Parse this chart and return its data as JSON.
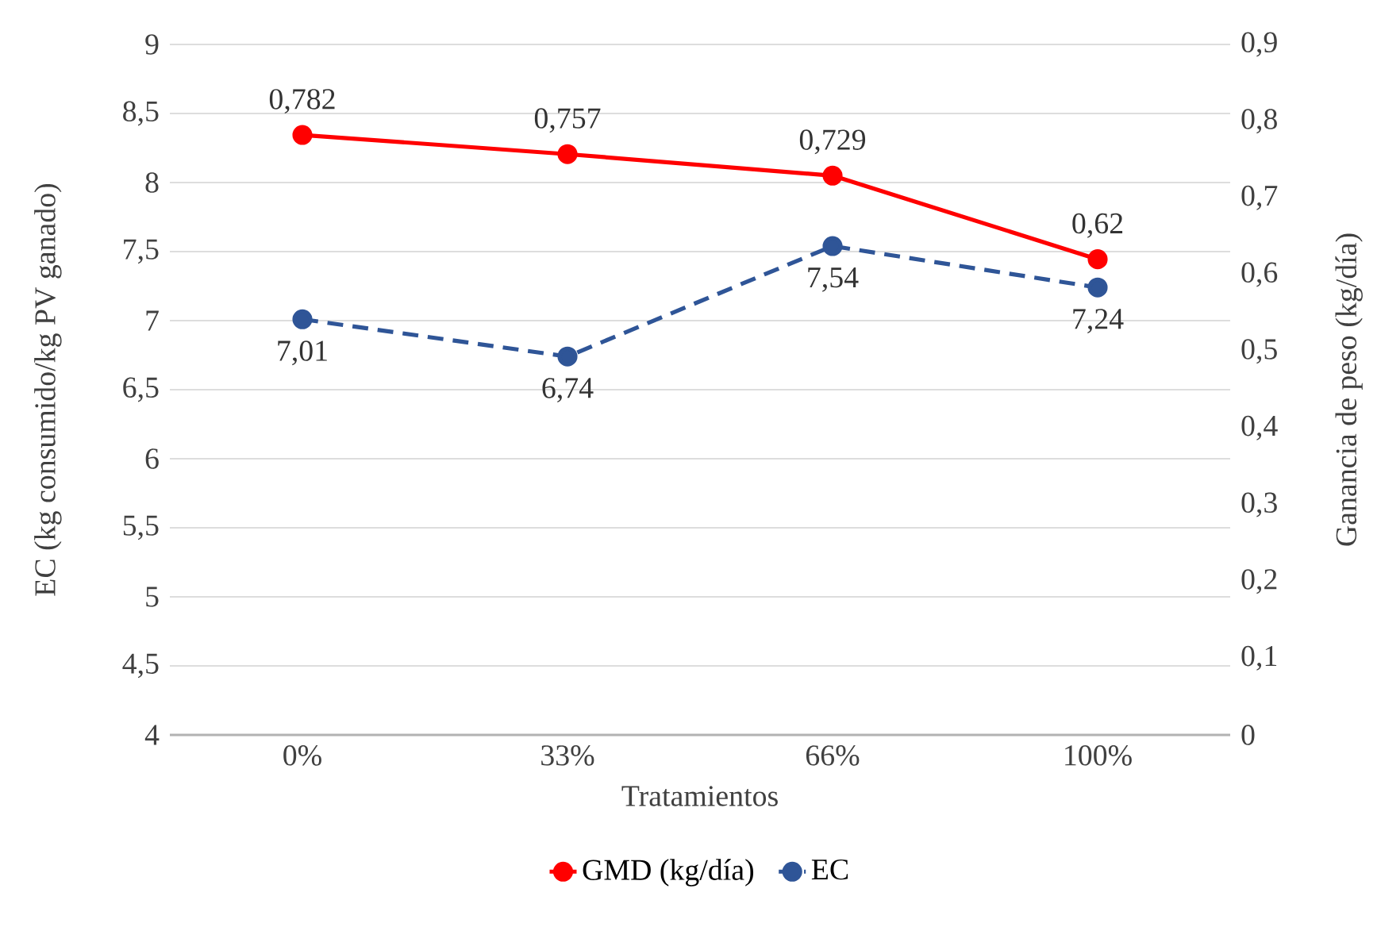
{
  "chart_data": {
    "type": "line",
    "xlabel": "Tratamientos",
    "ylabel": "EC (kg consumido/kg PV ganado)",
    "y2label": "Ganancia de peso (kg/día)",
    "categories": [
      "0%",
      "33%",
      "66%",
      "100%"
    ],
    "series": [
      {
        "name": "GMD (kg/día)",
        "color": "#ff0000",
        "axis": "y2",
        "values": [
          0.782,
          0.757,
          0.729,
          0.62
        ],
        "value_labels": [
          "0,782",
          "0,757",
          "0,729",
          "0,62"
        ],
        "line_style": "solid",
        "marker": "circle"
      },
      {
        "name": "EC",
        "color": "#2f5597",
        "values": [
          7.01,
          6.74,
          7.54,
          7.24
        ],
        "value_labels": [
          "7,01",
          "6,74",
          "7,54",
          "7,24"
        ],
        "line_style": "dashed",
        "marker": "circle"
      }
    ],
    "ylim": [
      4,
      9
    ],
    "yticks": [
      4,
      {
        "value": 4.5,
        "label": "4,5"
      },
      5,
      {
        "value": 5.5,
        "label": "5,5"
      },
      6,
      {
        "value": 6.5,
        "label": "6,5"
      },
      7,
      {
        "value": 7.5,
        "label": "7,5"
      },
      8,
      {
        "value": 8.5,
        "label": "8,5"
      },
      9
    ],
    "y2lim": [
      0,
      0.9
    ],
    "y2ticks": [
      {
        "value": 0,
        "label": "0"
      },
      {
        "value": 0.1,
        "label": "0,1"
      },
      {
        "value": 0.2,
        "label": "0,2"
      },
      {
        "value": 0.3,
        "label": "0,3"
      },
      {
        "value": 0.4,
        "label": "0,4"
      },
      {
        "value": 0.5,
        "label": "0,5"
      },
      {
        "value": 0.6,
        "label": "0,6"
      },
      {
        "value": 0.7,
        "label": "0,7"
      },
      {
        "value": 0.8,
        "label": "0,8"
      },
      {
        "value": 0.9,
        "label": "0,9"
      }
    ],
    "grid": "y",
    "legend": "bottom"
  }
}
